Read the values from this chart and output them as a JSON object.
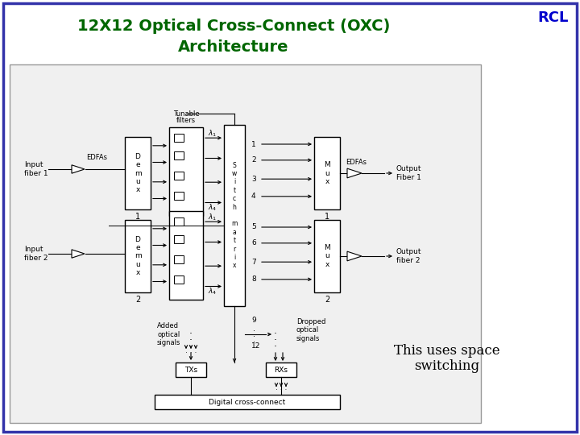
{
  "title_line1": "12X12 Optical Cross-Connect (OXC)",
  "title_line2": "Architecture",
  "rcl_text": "RCL",
  "title_color": "#006600",
  "rcl_color": "#0000cc",
  "border_color": "#3333aa",
  "background_color": "#ffffff",
  "diagram_bg": "#f0f0f0",
  "note_text": "This uses space\nswitching"
}
